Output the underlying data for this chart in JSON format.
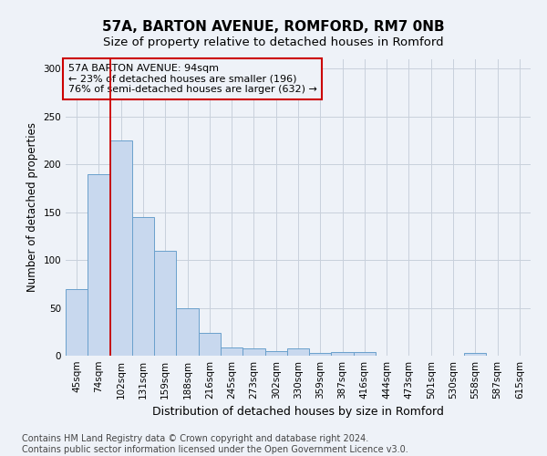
{
  "title1": "57A, BARTON AVENUE, ROMFORD, RM7 0NB",
  "title2": "Size of property relative to detached houses in Romford",
  "xlabel": "Distribution of detached houses by size in Romford",
  "ylabel": "Number of detached properties",
  "categories": [
    "45sqm",
    "74sqm",
    "102sqm",
    "131sqm",
    "159sqm",
    "188sqm",
    "216sqm",
    "245sqm",
    "273sqm",
    "302sqm",
    "330sqm",
    "359sqm",
    "387sqm",
    "416sqm",
    "444sqm",
    "473sqm",
    "501sqm",
    "530sqm",
    "558sqm",
    "587sqm",
    "615sqm"
  ],
  "values": [
    70,
    190,
    225,
    145,
    110,
    50,
    24,
    9,
    8,
    5,
    8,
    3,
    4,
    4,
    0,
    0,
    0,
    0,
    3,
    0,
    0
  ],
  "bar_color": "#c8d8ee",
  "bar_edgecolor": "#6aa0cc",
  "grid_color": "#c8d0dc",
  "subject_line_color": "#cc0000",
  "annotation_text": "57A BARTON AVENUE: 94sqm\n← 23% of detached houses are smaller (196)\n76% of semi-detached houses are larger (632) →",
  "annotation_box_edgecolor": "#cc0000",
  "ylim": [
    0,
    310
  ],
  "yticks": [
    0,
    50,
    100,
    150,
    200,
    250,
    300
  ],
  "footer_line1": "Contains HM Land Registry data © Crown copyright and database right 2024.",
  "footer_line2": "Contains public sector information licensed under the Open Government Licence v3.0.",
  "title1_fontsize": 11,
  "title2_fontsize": 9.5,
  "xlabel_fontsize": 9,
  "ylabel_fontsize": 8.5,
  "tick_fontsize": 7.5,
  "footer_fontsize": 7,
  "annotation_fontsize": 8,
  "bg_color": "#eef2f8"
}
